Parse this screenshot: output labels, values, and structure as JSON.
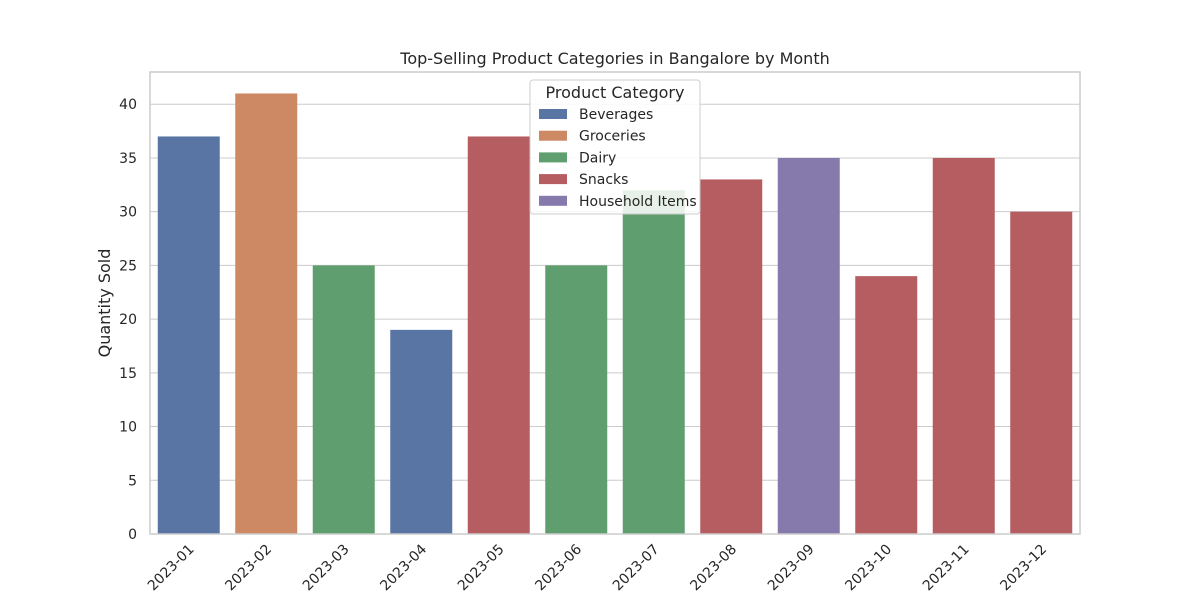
{
  "chart_data": {
    "type": "bar",
    "title": "Top-Selling Product Categories in Bangalore by Month",
    "xlabel": "",
    "ylabel": "Quantity Sold",
    "ylim": [
      0,
      43
    ],
    "yticks": [
      0,
      5,
      10,
      15,
      20,
      25,
      30,
      35,
      40
    ],
    "grid": true,
    "legend": {
      "title": "Product Category",
      "placement": "top-center",
      "entries": [
        {
          "label": "Beverages",
          "color": "#5975a4"
        },
        {
          "label": "Groceries",
          "color": "#cc8963"
        },
        {
          "label": "Dairy",
          "color": "#5f9e6e"
        },
        {
          "label": "Snacks",
          "color": "#b55d60"
        },
        {
          "label": "Household Items",
          "color": "#857aab"
        }
      ]
    },
    "categories": [
      "2023-01",
      "2023-02",
      "2023-03",
      "2023-04",
      "2023-05",
      "2023-06",
      "2023-07",
      "2023-08",
      "2023-09",
      "2023-10",
      "2023-11",
      "2023-12"
    ],
    "values": [
      37,
      41,
      25,
      19,
      37,
      25,
      32,
      33,
      35,
      24,
      35,
      30
    ],
    "bar_categories": [
      "Beverages",
      "Groceries",
      "Dairy",
      "Beverages",
      "Snacks",
      "Dairy",
      "Dairy",
      "Snacks",
      "Household Items",
      "Snacks",
      "Snacks",
      "Snacks"
    ]
  }
}
